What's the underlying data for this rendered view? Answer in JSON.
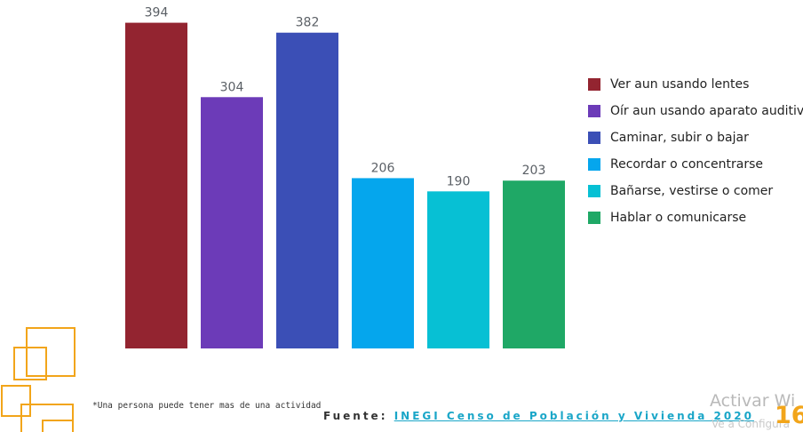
{
  "chart_data": {
    "type": "bar",
    "categories": [
      "Ver aun usando lentes",
      "Oír aun usando aparato auditivo",
      "Caminar, subir o bajar",
      "Recordar o concentrarse",
      "Bañarse, vestirse o comer",
      "Hablar o comunicarse"
    ],
    "values": [
      394,
      304,
      382,
      206,
      190,
      203
    ],
    "colors": [
      "#932430",
      "#6c3bb8",
      "#3b4fb6",
      "#05a6ed",
      "#07c0d4",
      "#1fa866"
    ],
    "ylim": [
      0,
      400
    ],
    "grid": false,
    "legend_position": "right"
  },
  "footnote": "*Una persona puede tener mas de una actividad",
  "source": {
    "prefix": "Fuente:",
    "link": "INEGI Censo de Población y Vivienda 2020"
  },
  "page_number": "16",
  "watermark": {
    "title": "Activar Wi",
    "subtitle": "Ve a Configura"
  },
  "decoration": {
    "color": "#f2a51a"
  }
}
